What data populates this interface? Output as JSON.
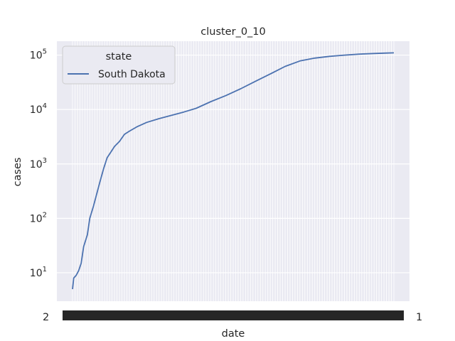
{
  "chart_data": {
    "type": "line",
    "title": "cluster_0_10",
    "xlabel": "date",
    "ylabel": "cases",
    "yscale": "log",
    "ylim": [
      3,
      180000
    ],
    "y_ticks": [
      {
        "value": 10,
        "base": "10",
        "exp": "1"
      },
      {
        "value": 100,
        "base": "10",
        "exp": "2"
      },
      {
        "value": 1000,
        "base": "10",
        "exp": "3"
      },
      {
        "value": 10000,
        "base": "10",
        "exp": "4"
      },
      {
        "value": 100000,
        "base": "10",
        "exp": "5"
      }
    ],
    "x_tick_count": 130,
    "x_tick_label_left": "2",
    "x_tick_label_right": "1",
    "legend": {
      "title": "state",
      "placement": "top-left"
    },
    "grid": true,
    "series": [
      {
        "name": "South Dakota",
        "color": "#4c72b0",
        "x": [
          0,
          0.5,
          1.5,
          2.5,
          3.5,
          4.5,
          6,
          7,
          8.5,
          9.5,
          11,
          12.5,
          14,
          15.5,
          17,
          19,
          21,
          23,
          26,
          30,
          35,
          40,
          45,
          50,
          56,
          62,
          68,
          74,
          80,
          86,
          92,
          98,
          104,
          110,
          116,
          122,
          127,
          130
        ],
        "y": [
          5,
          8,
          9,
          11,
          15,
          30,
          50,
          100,
          170,
          250,
          450,
          800,
          1300,
          1650,
          2100,
          2600,
          3500,
          4000,
          4800,
          5800,
          6800,
          7800,
          9000,
          10500,
          14000,
          18000,
          24000,
          33000,
          45000,
          62000,
          78000,
          88000,
          95000,
          100000,
          104000,
          107000,
          109000,
          110000
        ]
      }
    ]
  }
}
